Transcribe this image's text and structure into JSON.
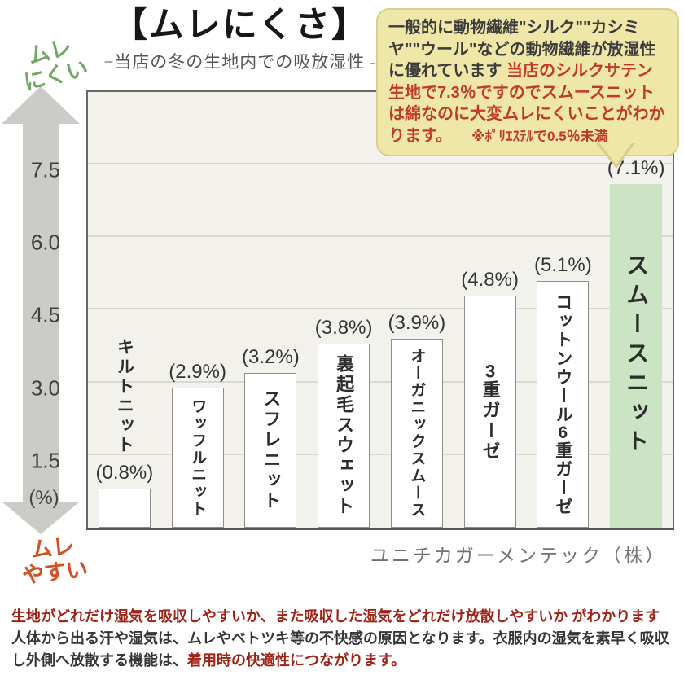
{
  "header": {
    "title": "【ムレにくさ】",
    "subtitle": "−当店の冬の生地内での吸放湿性 -"
  },
  "labels": {
    "mure_nikui_1": "ムレ",
    "mure_nikui_2": "にくい",
    "mure_yasui_1": "ムレ",
    "mure_yasui_2": "やすい",
    "unit": "(%)"
  },
  "bubble": {
    "text_black": "一般的に動物繊維\"シルク\"\"カシミヤ\"\"ウール\"などの動物繊維が放湿性に優れています ",
    "text_red": "当店のシルクサテン生地で7.3％ですのでスムースニットは綿なのに大変ムレにくいことがわかります。",
    "note": "※ﾎﾟﾘｴｽﾃﾙで0.5％未満"
  },
  "attribution": {
    "text": "ユニチカガーメンテック（株）"
  },
  "footer": {
    "line1": "生地がどれだけ湿気を吸収しやすいか、また吸収した湿気をどれだけ放散しやすいか がわかります",
    "line2": "人体から出る汗や湿気は、ムレやベトツキ等の不快感の原因となります。衣服内の湿気を素早く吸収",
    "line3_black": "し外側へ放散する機能は、",
    "line3_red": "着用時の快適性につながります。"
  },
  "colors": {
    "accent_green": "#73a766",
    "accent_orange": "#cf5326",
    "bubble_bg": "#eee7a8",
    "bubble_border": "#d9cd90",
    "bubble_red_text": "#c13a28",
    "footer_red": "#9f2418",
    "plot_bg": "#f2f1eb",
    "bar_default": "#ffffff",
    "bar_highlight": "#cbe4c4",
    "arrow_gray": "#cbcbc8"
  },
  "chart_data": {
    "type": "bar",
    "title": "【ムレにくさ】",
    "subtitle": "−当店の冬の生地内での吸放湿性 -",
    "categories": [
      "キルトニット",
      "ワッフルニット",
      "スフレニット",
      "裏起毛スウェット",
      "オーガニックスムース",
      "3重ガーゼ",
      "コットンウール6重ガーゼ",
      "スムースニット"
    ],
    "values": [
      0.8,
      2.9,
      3.2,
      3.8,
      3.9,
      4.8,
      5.1,
      7.1
    ],
    "value_labels": [
      "(0.8%)",
      "(2.9%)",
      "(3.2%)",
      "(3.8%)",
      "(3.9%)",
      "(4.8%)",
      "(5.1%)",
      "(7.1%)"
    ],
    "unit": "(%)",
    "yticks": [
      1.5,
      3.0,
      4.5,
      6.0,
      7.5
    ],
    "ylim": [
      0,
      9
    ],
    "grid": true,
    "highlight_index": 7,
    "axis_arrow_top_label": "ムレにくい",
    "axis_arrow_bottom_label": "ムレやすい",
    "source": "ユニチカガーメンテック（株）"
  }
}
